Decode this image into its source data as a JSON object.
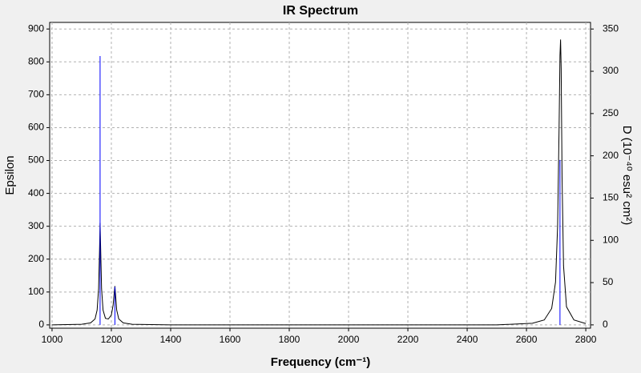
{
  "chart_data": {
    "type": "line",
    "title": "IR Spectrum",
    "x_label": "Frequency (cm⁻¹)",
    "y_label": "Epsilon",
    "y2_label": "D (10⁻⁴⁰ esu² cm²)",
    "xlim": [
      992,
      2816
    ],
    "xticks": [
      1000,
      1200,
      1400,
      1600,
      1800,
      2000,
      2200,
      2400,
      2600,
      2800
    ],
    "ylim": [
      -10,
      920
    ],
    "yticks": [
      0,
      100,
      200,
      300,
      400,
      500,
      600,
      700,
      800,
      900
    ],
    "y2lim": [
      -3.9,
      357.8
    ],
    "y2ticks": [
      0,
      50,
      100,
      150,
      200,
      250,
      300,
      350
    ],
    "grid": true,
    "series": [
      {
        "color": "#000000",
        "x": [
          1000,
          1100,
          1130,
          1145,
          1152,
          1157,
          1160,
          1162,
          1164,
          1167,
          1172,
          1180,
          1190,
          1200,
          1206,
          1210,
          1212,
          1214,
          1218,
          1225,
          1240,
          1270,
          1400,
          1800,
          2200,
          2500,
          2620,
          2660,
          2685,
          2698,
          2705,
          2710,
          2713,
          2715,
          2717,
          2720,
          2725,
          2735,
          2760,
          2800
        ],
        "values": [
          0,
          2,
          6,
          18,
          45,
          110,
          220,
          310,
          230,
          110,
          45,
          20,
          18,
          30,
          60,
          100,
          118,
          95,
          45,
          18,
          6,
          2,
          0,
          0,
          0,
          0,
          5,
          15,
          50,
          130,
          300,
          600,
          820,
          868,
          780,
          450,
          180,
          55,
          15,
          4
        ]
      },
      {
        "color": "#0000ff",
        "axis": "y2",
        "style": "stick",
        "x": [
          1162,
          1212,
          2713
        ],
        "values": [
          318,
          45,
          195
        ]
      }
    ]
  }
}
